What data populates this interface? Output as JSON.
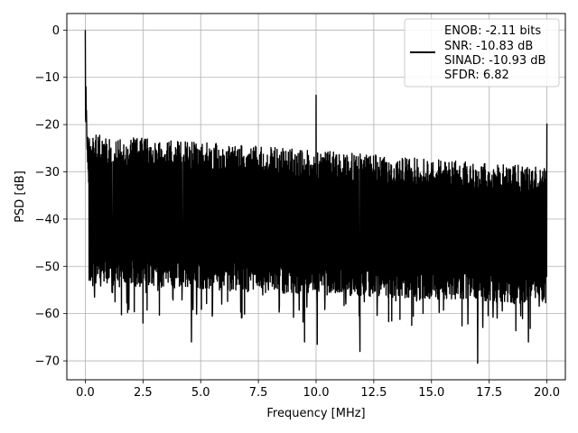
{
  "chart_data": {
    "type": "line",
    "xlabel": "Frequency [MHz]",
    "ylabel": "PSD [dB]",
    "xlim": [
      -0.8,
      20.8
    ],
    "ylim": [
      -74,
      3.5
    ],
    "grid": true,
    "x_ticks": [
      0.0,
      2.5,
      5.0,
      7.5,
      10.0,
      12.5,
      15.0,
      17.5,
      20.0
    ],
    "x_tick_labels": [
      "0.0",
      "2.5",
      "5.0",
      "7.5",
      "10.0",
      "12.5",
      "15.0",
      "17.5",
      "20.0"
    ],
    "y_ticks": [
      0,
      -10,
      -20,
      -30,
      -40,
      -50,
      -60,
      -70
    ],
    "y_tick_labels": [
      "0",
      "−10",
      "−20",
      "−30",
      "−40",
      "−50",
      "−60",
      "−70"
    ],
    "legend": {
      "placement": "upper right",
      "entries": [
        "ENOB: -2.11 bits",
        "SNR: -10.83 dB",
        "SINAD: -10.93 dB",
        "SFDR: 6.82"
      ]
    },
    "series": [
      {
        "color": "#000000",
        "x_range": [
          0.0,
          20.0
        ],
        "noise_band_top_db": [
          -22,
          -29
        ],
        "noise_band_bottom_db": [
          -48,
          -52
        ],
        "peaks": [
          {
            "x": 0.0,
            "y": 0.0
          },
          {
            "x": 0.03,
            "y": -12.0
          },
          {
            "x": 0.05,
            "y": -17.0
          },
          {
            "x": 10.0,
            "y": -13.8
          },
          {
            "x": 20.0,
            "y": -19.8
          }
        ],
        "dips": [
          {
            "x": 2.5,
            "y": -62.0
          },
          {
            "x": 4.6,
            "y": -66.0
          },
          {
            "x": 9.5,
            "y": -66.0
          },
          {
            "x": 10.05,
            "y": -66.5
          },
          {
            "x": 11.9,
            "y": -68.0
          },
          {
            "x": 17.0,
            "y": -70.5
          },
          {
            "x": 19.2,
            "y": -66.0
          },
          {
            "x": 20.0,
            "y": -65.0
          }
        ]
      }
    ]
  }
}
